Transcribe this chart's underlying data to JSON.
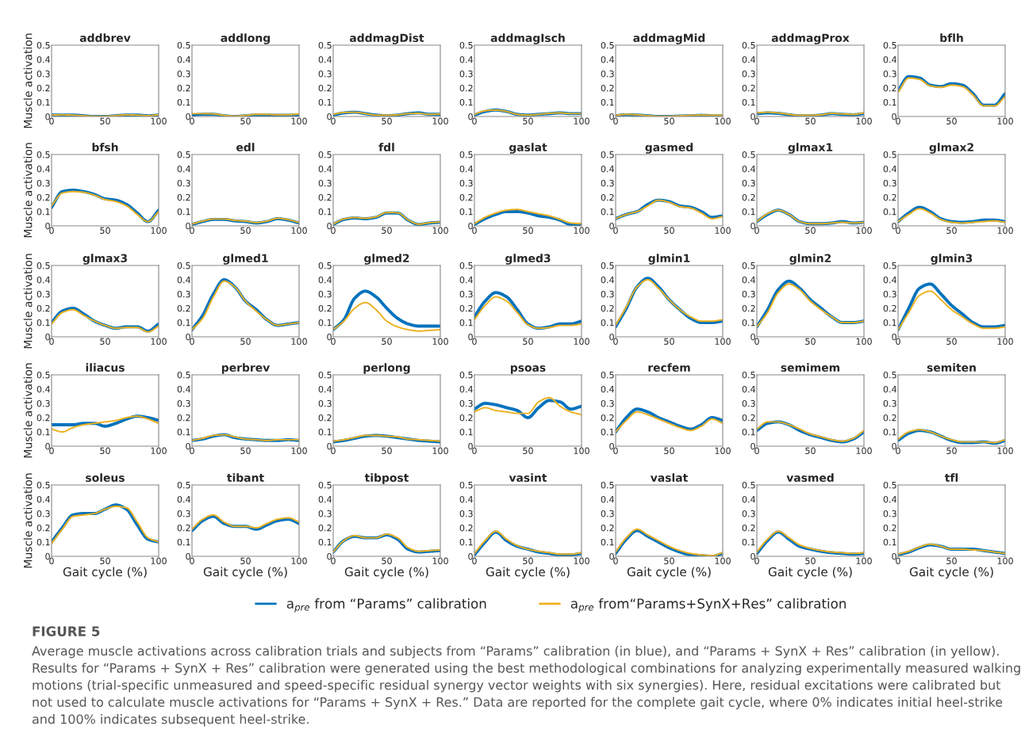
{
  "chart_data": [
    {
      "type": "line",
      "title": "addbrev",
      "ylabel": "Muscle activation",
      "x": [
        0,
        10,
        20,
        30,
        40,
        50,
        60,
        70,
        80,
        90,
        100
      ],
      "xlim": [
        0,
        100
      ],
      "xticks": [
        0,
        50,
        100
      ],
      "ylim": [
        0,
        0.5
      ],
      "yticks": [
        0,
        0.1,
        0.2,
        0.3,
        0.4,
        0.5
      ],
      "series": [
        {
          "color": "#0072bd",
          "values": [
            0.01,
            0.01,
            0.01,
            0.005,
            0,
            0,
            0.005,
            0.01,
            0.01,
            0.005,
            0.01
          ]
        },
        {
          "color": "#edb120",
          "values": [
            0.01,
            0.012,
            0.01,
            0.005,
            0.002,
            0.002,
            0.006,
            0.012,
            0.01,
            0.006,
            0.012
          ]
        }
      ]
    },
    {
      "type": "line",
      "title": "addlong",
      "x": [
        0,
        10,
        20,
        30,
        40,
        50,
        60,
        70,
        80,
        90,
        100
      ],
      "xlim": [
        0,
        100
      ],
      "xticks": [
        0,
        50,
        100
      ],
      "ylim": [
        0,
        0.5
      ],
      "yticks": [
        0,
        0.1,
        0.2,
        0.3,
        0.4,
        0.5
      ],
      "series": [
        {
          "color": "#0072bd",
          "values": [
            0.01,
            0.015,
            0.015,
            0.005,
            0,
            0.005,
            0.01,
            0.01,
            0.008,
            0.008,
            0.012
          ]
        },
        {
          "color": "#edb120",
          "values": [
            0.02,
            0.02,
            0.018,
            0.008,
            0.003,
            0.008,
            0.015,
            0.015,
            0.012,
            0.012,
            0.018
          ]
        }
      ]
    },
    {
      "type": "line",
      "title": "addmagDist",
      "x": [
        0,
        10,
        20,
        30,
        40,
        50,
        60,
        70,
        80,
        90,
        100
      ],
      "xlim": [
        0,
        100
      ],
      "xticks": [
        0,
        50,
        100
      ],
      "ylim": [
        0,
        0.5
      ],
      "yticks": [
        0,
        0.1,
        0.2,
        0.3,
        0.4,
        0.5
      ],
      "series": [
        {
          "color": "#0072bd",
          "values": [
            0.01,
            0.025,
            0.03,
            0.02,
            0.01,
            0.005,
            0.01,
            0.02,
            0.025,
            0.015,
            0.015
          ]
        },
        {
          "color": "#edb120",
          "values": [
            0.015,
            0.028,
            0.03,
            0.02,
            0.01,
            0.008,
            0.012,
            0.02,
            0.022,
            0.015,
            0.018
          ]
        }
      ]
    },
    {
      "type": "line",
      "title": "addmagIsch",
      "x": [
        0,
        10,
        20,
        30,
        40,
        50,
        60,
        70,
        80,
        90,
        100
      ],
      "xlim": [
        0,
        100
      ],
      "xticks": [
        0,
        50,
        100
      ],
      "ylim": [
        0,
        0.5
      ],
      "yticks": [
        0,
        0.1,
        0.2,
        0.3,
        0.4,
        0.5
      ],
      "series": [
        {
          "color": "#0072bd",
          "values": [
            0.01,
            0.035,
            0.045,
            0.035,
            0.015,
            0.01,
            0.015,
            0.02,
            0.025,
            0.02,
            0.02
          ]
        },
        {
          "color": "#edb120",
          "values": [
            0.015,
            0.04,
            0.045,
            0.035,
            0.015,
            0.01,
            0.015,
            0.022,
            0.025,
            0.02,
            0.02
          ]
        }
      ]
    },
    {
      "type": "line",
      "title": "addmagMid",
      "x": [
        0,
        10,
        20,
        30,
        40,
        50,
        60,
        70,
        80,
        90,
        100
      ],
      "xlim": [
        0,
        100
      ],
      "xticks": [
        0,
        50,
        100
      ],
      "ylim": [
        0,
        0.5
      ],
      "yticks": [
        0,
        0.1,
        0.2,
        0.3,
        0.4,
        0.5
      ],
      "series": [
        {
          "color": "#0072bd",
          "values": [
            0.005,
            0.012,
            0.01,
            0.005,
            0,
            0,
            0.003,
            0.005,
            0.008,
            0.005,
            0.005
          ]
        },
        {
          "color": "#edb120",
          "values": [
            0.008,
            0.015,
            0.012,
            0.006,
            0.002,
            0.002,
            0.005,
            0.008,
            0.01,
            0.008,
            0.008
          ]
        }
      ]
    },
    {
      "type": "line",
      "title": "addmagProx",
      "x": [
        0,
        10,
        20,
        30,
        40,
        50,
        60,
        70,
        80,
        90,
        100
      ],
      "xlim": [
        0,
        100
      ],
      "xticks": [
        0,
        50,
        100
      ],
      "ylim": [
        0,
        0.5
      ],
      "yticks": [
        0,
        0.1,
        0.2,
        0.3,
        0.4,
        0.5
      ],
      "series": [
        {
          "color": "#0072bd",
          "values": [
            0.02,
            0.025,
            0.022,
            0.012,
            0.005,
            0.005,
            0.01,
            0.02,
            0.015,
            0.012,
            0.02
          ]
        },
        {
          "color": "#edb120",
          "values": [
            0.025,
            0.03,
            0.025,
            0.015,
            0.008,
            0.008,
            0.012,
            0.022,
            0.018,
            0.015,
            0.025
          ]
        }
      ]
    },
    {
      "type": "line",
      "title": "bflh",
      "x": [
        0,
        10,
        20,
        30,
        40,
        50,
        60,
        70,
        80,
        90,
        100
      ],
      "xlim": [
        0,
        100
      ],
      "xticks": [
        0,
        50,
        100
      ],
      "ylim": [
        0,
        0.5
      ],
      "yticks": [
        0,
        0.1,
        0.2,
        0.3,
        0.4,
        0.5
      ],
      "series": [
        {
          "color": "#0072bd",
          "values": [
            0.18,
            0.28,
            0.27,
            0.22,
            0.21,
            0.23,
            0.22,
            0.16,
            0.08,
            0.08,
            0.16
          ]
        },
        {
          "color": "#edb120",
          "values": [
            0.17,
            0.27,
            0.26,
            0.215,
            0.205,
            0.22,
            0.21,
            0.15,
            0.075,
            0.075,
            0.14
          ]
        }
      ]
    },
    {
      "type": "line",
      "title": "bfsh",
      "ylabel": "Muscle activation",
      "x": [
        0,
        10,
        20,
        30,
        40,
        50,
        60,
        70,
        80,
        90,
        100
      ],
      "xlim": [
        0,
        100
      ],
      "xticks": [
        0,
        50,
        100
      ],
      "ylim": [
        0,
        0.5
      ],
      "yticks": [
        0,
        0.1,
        0.2,
        0.3,
        0.4,
        0.5
      ],
      "series": [
        {
          "color": "#0072bd",
          "values": [
            0.13,
            0.24,
            0.25,
            0.24,
            0.22,
            0.19,
            0.18,
            0.15,
            0.09,
            0.03,
            0.11
          ]
        },
        {
          "color": "#edb120",
          "values": [
            0.14,
            0.23,
            0.24,
            0.235,
            0.215,
            0.185,
            0.17,
            0.14,
            0.08,
            0.03,
            0.1
          ]
        }
      ]
    },
    {
      "type": "line",
      "title": "edl",
      "x": [
        0,
        10,
        20,
        30,
        40,
        50,
        60,
        70,
        80,
        90,
        100
      ],
      "xlim": [
        0,
        100
      ],
      "xticks": [
        0,
        50,
        100
      ],
      "ylim": [
        0,
        0.5
      ],
      "yticks": [
        0,
        0.1,
        0.2,
        0.3,
        0.4,
        0.5
      ],
      "series": [
        {
          "color": "#0072bd",
          "values": [
            0.01,
            0.03,
            0.045,
            0.045,
            0.035,
            0.03,
            0.02,
            0.03,
            0.05,
            0.04,
            0.02
          ]
        },
        {
          "color": "#edb120",
          "values": [
            0.013,
            0.033,
            0.048,
            0.048,
            0.038,
            0.033,
            0.023,
            0.033,
            0.053,
            0.043,
            0.023
          ]
        }
      ]
    },
    {
      "type": "line",
      "title": "fdl",
      "x": [
        0,
        10,
        20,
        30,
        40,
        50,
        60,
        70,
        80,
        90,
        100
      ],
      "xlim": [
        0,
        100
      ],
      "xticks": [
        0,
        50,
        100
      ],
      "ylim": [
        0,
        0.5
      ],
      "yticks": [
        0,
        0.1,
        0.2,
        0.3,
        0.4,
        0.5
      ],
      "series": [
        {
          "color": "#0072bd",
          "values": [
            0.01,
            0.045,
            0.055,
            0.05,
            0.06,
            0.09,
            0.09,
            0.04,
            0.01,
            0.02,
            0.025
          ]
        },
        {
          "color": "#edb120",
          "values": [
            0.012,
            0.048,
            0.058,
            0.053,
            0.063,
            0.093,
            0.092,
            0.042,
            0.012,
            0.022,
            0.027
          ]
        }
      ]
    },
    {
      "type": "line",
      "title": "gaslat",
      "x": [
        0,
        10,
        20,
        30,
        40,
        50,
        60,
        70,
        80,
        90,
        100
      ],
      "xlim": [
        0,
        100
      ],
      "xticks": [
        0,
        50,
        100
      ],
      "ylim": [
        0,
        0.5
      ],
      "yticks": [
        0,
        0.1,
        0.2,
        0.3,
        0.4,
        0.5
      ],
      "series": [
        {
          "color": "#0072bd",
          "values": [
            0.01,
            0.05,
            0.08,
            0.1,
            0.1,
            0.09,
            0.07,
            0.06,
            0.04,
            0.01,
            0.01
          ]
        },
        {
          "color": "#edb120",
          "values": [
            0.015,
            0.06,
            0.09,
            0.11,
            0.115,
            0.1,
            0.085,
            0.07,
            0.045,
            0.02,
            0.015
          ]
        }
      ]
    },
    {
      "type": "line",
      "title": "gasmed",
      "x": [
        0,
        10,
        20,
        30,
        40,
        50,
        60,
        70,
        80,
        90,
        100
      ],
      "xlim": [
        0,
        100
      ],
      "xticks": [
        0,
        50,
        100
      ],
      "ylim": [
        0,
        0.5
      ],
      "yticks": [
        0,
        0.1,
        0.2,
        0.3,
        0.4,
        0.5
      ],
      "series": [
        {
          "color": "#0072bd",
          "values": [
            0.05,
            0.08,
            0.1,
            0.15,
            0.18,
            0.17,
            0.14,
            0.13,
            0.1,
            0.06,
            0.07
          ]
        },
        {
          "color": "#edb120",
          "values": [
            0.05,
            0.08,
            0.1,
            0.14,
            0.18,
            0.165,
            0.135,
            0.125,
            0.09,
            0.05,
            0.065
          ]
        }
      ]
    },
    {
      "type": "line",
      "title": "glmax1",
      "x": [
        0,
        10,
        20,
        30,
        40,
        50,
        60,
        70,
        80,
        90,
        100
      ],
      "xlim": [
        0,
        100
      ],
      "xticks": [
        0,
        50,
        100
      ],
      "ylim": [
        0,
        0.5
      ],
      "yticks": [
        0,
        0.1,
        0.2,
        0.3,
        0.4,
        0.5
      ],
      "series": [
        {
          "color": "#0072bd",
          "values": [
            0.03,
            0.08,
            0.11,
            0.08,
            0.03,
            0.015,
            0.015,
            0.02,
            0.03,
            0.02,
            0.025
          ]
        },
        {
          "color": "#edb120",
          "values": [
            0.03,
            0.085,
            0.11,
            0.08,
            0.03,
            0.015,
            0.015,
            0.02,
            0.025,
            0.02,
            0.025
          ]
        }
      ]
    },
    {
      "type": "line",
      "title": "glmax2",
      "x": [
        0,
        10,
        20,
        30,
        40,
        50,
        60,
        70,
        80,
        90,
        100
      ],
      "xlim": [
        0,
        100
      ],
      "xticks": [
        0,
        50,
        100
      ],
      "ylim": [
        0,
        0.5
      ],
      "yticks": [
        0,
        0.1,
        0.2,
        0.3,
        0.4,
        0.5
      ],
      "series": [
        {
          "color": "#0072bd",
          "values": [
            0.03,
            0.09,
            0.13,
            0.1,
            0.05,
            0.03,
            0.025,
            0.03,
            0.04,
            0.04,
            0.03
          ]
        },
        {
          "color": "#edb120",
          "values": [
            0.03,
            0.08,
            0.12,
            0.09,
            0.045,
            0.025,
            0.02,
            0.025,
            0.03,
            0.035,
            0.025
          ]
        }
      ]
    },
    {
      "type": "line",
      "title": "glmax3",
      "ylabel": "Muscle activation",
      "x": [
        0,
        10,
        20,
        30,
        40,
        50,
        60,
        70,
        80,
        90,
        100
      ],
      "xlim": [
        0,
        100
      ],
      "xticks": [
        0,
        50,
        100
      ],
      "ylim": [
        0,
        0.5
      ],
      "yticks": [
        0,
        0.1,
        0.2,
        0.3,
        0.4,
        0.5
      ],
      "series": [
        {
          "color": "#0072bd",
          "values": [
            0.1,
            0.18,
            0.2,
            0.16,
            0.11,
            0.08,
            0.06,
            0.07,
            0.07,
            0.04,
            0.09
          ]
        },
        {
          "color": "#edb120",
          "values": [
            0.09,
            0.17,
            0.19,
            0.15,
            0.11,
            0.08,
            0.06,
            0.065,
            0.065,
            0.035,
            0.075
          ]
        }
      ]
    },
    {
      "type": "line",
      "title": "glmed1",
      "x": [
        0,
        10,
        20,
        30,
        40,
        50,
        60,
        70,
        80,
        90,
        100
      ],
      "xlim": [
        0,
        100
      ],
      "xticks": [
        0,
        50,
        100
      ],
      "ylim": [
        0,
        0.5
      ],
      "yticks": [
        0,
        0.1,
        0.2,
        0.3,
        0.4,
        0.5
      ],
      "series": [
        {
          "color": "#0072bd",
          "values": [
            0.05,
            0.15,
            0.3,
            0.4,
            0.35,
            0.25,
            0.19,
            0.12,
            0.08,
            0.09,
            0.1
          ]
        },
        {
          "color": "#edb120",
          "values": [
            0.05,
            0.13,
            0.28,
            0.39,
            0.35,
            0.25,
            0.18,
            0.12,
            0.08,
            0.09,
            0.1
          ]
        }
      ]
    },
    {
      "type": "line",
      "title": "glmed2",
      "x": [
        0,
        10,
        20,
        30,
        40,
        50,
        60,
        70,
        80,
        90,
        100
      ],
      "xlim": [
        0,
        100
      ],
      "xticks": [
        0,
        50,
        100
      ],
      "ylim": [
        0,
        0.5
      ],
      "yticks": [
        0,
        0.1,
        0.2,
        0.3,
        0.4,
        0.5
      ],
      "series": [
        {
          "color": "#0072bd",
          "values": [
            0.05,
            0.12,
            0.27,
            0.32,
            0.28,
            0.2,
            0.13,
            0.09,
            0.075,
            0.075,
            0.075
          ]
        },
        {
          "color": "#edb120",
          "values": [
            0.05,
            0.11,
            0.2,
            0.24,
            0.19,
            0.11,
            0.07,
            0.05,
            0.04,
            0.045,
            0.05
          ]
        }
      ]
    },
    {
      "type": "line",
      "title": "glmed3",
      "x": [
        0,
        10,
        20,
        30,
        40,
        50,
        60,
        70,
        80,
        90,
        100
      ],
      "xlim": [
        0,
        100
      ],
      "xticks": [
        0,
        50,
        100
      ],
      "ylim": [
        0,
        0.5
      ],
      "yticks": [
        0,
        0.1,
        0.2,
        0.3,
        0.4,
        0.5
      ],
      "series": [
        {
          "color": "#0072bd",
          "values": [
            0.14,
            0.25,
            0.31,
            0.28,
            0.19,
            0.09,
            0.06,
            0.07,
            0.09,
            0.09,
            0.11
          ]
        },
        {
          "color": "#edb120",
          "values": [
            0.12,
            0.22,
            0.28,
            0.25,
            0.17,
            0.085,
            0.06,
            0.065,
            0.08,
            0.08,
            0.09
          ]
        }
      ]
    },
    {
      "type": "line",
      "title": "glmin1",
      "x": [
        0,
        10,
        20,
        30,
        40,
        50,
        60,
        70,
        80,
        90,
        100
      ],
      "xlim": [
        0,
        100
      ],
      "xticks": [
        0,
        50,
        100
      ],
      "ylim": [
        0,
        0.5
      ],
      "yticks": [
        0,
        0.1,
        0.2,
        0.3,
        0.4,
        0.5
      ],
      "series": [
        {
          "color": "#0072bd",
          "values": [
            0.07,
            0.2,
            0.35,
            0.41,
            0.35,
            0.26,
            0.19,
            0.13,
            0.1,
            0.1,
            0.11
          ]
        },
        {
          "color": "#edb120",
          "values": [
            0.08,
            0.21,
            0.35,
            0.4,
            0.34,
            0.26,
            0.19,
            0.14,
            0.11,
            0.11,
            0.12
          ]
        }
      ]
    },
    {
      "type": "line",
      "title": "glmin2",
      "x": [
        0,
        10,
        20,
        30,
        40,
        50,
        60,
        70,
        80,
        90,
        100
      ],
      "xlim": [
        0,
        100
      ],
      "xticks": [
        0,
        50,
        100
      ],
      "ylim": [
        0,
        0.5
      ],
      "yticks": [
        0,
        0.1,
        0.2,
        0.3,
        0.4,
        0.5
      ],
      "series": [
        {
          "color": "#0072bd",
          "values": [
            0.07,
            0.19,
            0.33,
            0.39,
            0.34,
            0.26,
            0.2,
            0.14,
            0.1,
            0.1,
            0.11
          ]
        },
        {
          "color": "#edb120",
          "values": [
            0.07,
            0.17,
            0.31,
            0.37,
            0.33,
            0.25,
            0.19,
            0.14,
            0.1,
            0.1,
            0.11
          ]
        }
      ]
    },
    {
      "type": "line",
      "title": "glmin3",
      "x": [
        0,
        10,
        20,
        30,
        40,
        50,
        60,
        70,
        80,
        90,
        100
      ],
      "xlim": [
        0,
        100
      ],
      "xticks": [
        0,
        50,
        100
      ],
      "ylim": [
        0,
        0.5
      ],
      "yticks": [
        0,
        0.1,
        0.2,
        0.3,
        0.4,
        0.5
      ],
      "series": [
        {
          "color": "#0072bd",
          "values": [
            0.05,
            0.2,
            0.34,
            0.37,
            0.3,
            0.22,
            0.16,
            0.1,
            0.07,
            0.07,
            0.08
          ]
        },
        {
          "color": "#edb120",
          "values": [
            0.05,
            0.17,
            0.29,
            0.32,
            0.26,
            0.19,
            0.14,
            0.09,
            0.06,
            0.06,
            0.07
          ]
        }
      ]
    },
    {
      "type": "line",
      "title": "iliacus",
      "ylabel": "Muscle activation",
      "x": [
        0,
        10,
        20,
        30,
        40,
        50,
        60,
        70,
        80,
        90,
        100
      ],
      "xlim": [
        0,
        100
      ],
      "xticks": [
        0,
        50,
        100
      ],
      "ylim": [
        0,
        0.5
      ],
      "yticks": [
        0,
        0.1,
        0.2,
        0.3,
        0.4,
        0.5
      ],
      "series": [
        {
          "color": "#0072bd",
          "values": [
            0.15,
            0.15,
            0.15,
            0.16,
            0.16,
            0.14,
            0.16,
            0.19,
            0.21,
            0.2,
            0.18
          ]
        },
        {
          "color": "#edb120",
          "values": [
            0.12,
            0.1,
            0.13,
            0.15,
            0.16,
            0.17,
            0.18,
            0.2,
            0.21,
            0.19,
            0.16
          ]
        }
      ]
    },
    {
      "type": "line",
      "title": "perbrev",
      "x": [
        0,
        10,
        20,
        30,
        40,
        50,
        60,
        70,
        80,
        90,
        100
      ],
      "xlim": [
        0,
        100
      ],
      "xticks": [
        0,
        50,
        100
      ],
      "ylim": [
        0,
        0.5
      ],
      "yticks": [
        0,
        0.1,
        0.2,
        0.3,
        0.4,
        0.5
      ],
      "series": [
        {
          "color": "#0072bd",
          "values": [
            0.04,
            0.05,
            0.07,
            0.08,
            0.06,
            0.05,
            0.045,
            0.04,
            0.04,
            0.045,
            0.04
          ]
        },
        {
          "color": "#edb120",
          "values": [
            0.04,
            0.055,
            0.075,
            0.08,
            0.065,
            0.05,
            0.045,
            0.04,
            0.045,
            0.045,
            0.045
          ]
        }
      ]
    },
    {
      "type": "line",
      "title": "perlong",
      "x": [
        0,
        10,
        20,
        30,
        40,
        50,
        60,
        70,
        80,
        90,
        100
      ],
      "xlim": [
        0,
        100
      ],
      "xticks": [
        0,
        50,
        100
      ],
      "ylim": [
        0,
        0.5
      ],
      "yticks": [
        0,
        0.1,
        0.2,
        0.3,
        0.4,
        0.5
      ],
      "series": [
        {
          "color": "#0072bd",
          "values": [
            0.03,
            0.04,
            0.055,
            0.07,
            0.075,
            0.07,
            0.06,
            0.05,
            0.04,
            0.035,
            0.03
          ]
        },
        {
          "color": "#edb120",
          "values": [
            0.035,
            0.045,
            0.06,
            0.075,
            0.075,
            0.07,
            0.065,
            0.05,
            0.045,
            0.04,
            0.035
          ]
        }
      ]
    },
    {
      "type": "line",
      "title": "psoas",
      "x": [
        0,
        10,
        20,
        30,
        40,
        50,
        60,
        70,
        80,
        90,
        100
      ],
      "xlim": [
        0,
        100
      ],
      "xticks": [
        0,
        50,
        100
      ],
      "ylim": [
        0,
        0.5
      ],
      "yticks": [
        0,
        0.1,
        0.2,
        0.3,
        0.4,
        0.5
      ],
      "series": [
        {
          "color": "#0072bd",
          "values": [
            0.26,
            0.3,
            0.29,
            0.27,
            0.25,
            0.2,
            0.27,
            0.32,
            0.31,
            0.26,
            0.28
          ]
        },
        {
          "color": "#edb120",
          "values": [
            0.24,
            0.27,
            0.25,
            0.24,
            0.23,
            0.23,
            0.31,
            0.34,
            0.28,
            0.24,
            0.22
          ]
        }
      ]
    },
    {
      "type": "line",
      "title": "recfem",
      "x": [
        0,
        10,
        20,
        30,
        40,
        50,
        60,
        70,
        80,
        90,
        100
      ],
      "xlim": [
        0,
        100
      ],
      "xticks": [
        0,
        50,
        100
      ],
      "ylim": [
        0,
        0.5
      ],
      "yticks": [
        0,
        0.1,
        0.2,
        0.3,
        0.4,
        0.5
      ],
      "series": [
        {
          "color": "#0072bd",
          "values": [
            0.1,
            0.2,
            0.26,
            0.24,
            0.2,
            0.17,
            0.14,
            0.12,
            0.15,
            0.2,
            0.18
          ]
        },
        {
          "color": "#edb120",
          "values": [
            0.1,
            0.18,
            0.24,
            0.22,
            0.19,
            0.16,
            0.13,
            0.11,
            0.14,
            0.19,
            0.16
          ]
        }
      ]
    },
    {
      "type": "line",
      "title": "semimem",
      "x": [
        0,
        10,
        20,
        30,
        40,
        50,
        60,
        70,
        80,
        90,
        100
      ],
      "xlim": [
        0,
        100
      ],
      "xticks": [
        0,
        50,
        100
      ],
      "ylim": [
        0,
        0.5
      ],
      "yticks": [
        0,
        0.1,
        0.2,
        0.3,
        0.4,
        0.5
      ],
      "series": [
        {
          "color": "#0072bd",
          "values": [
            0.11,
            0.16,
            0.17,
            0.15,
            0.11,
            0.08,
            0.06,
            0.04,
            0.03,
            0.05,
            0.1
          ]
        },
        {
          "color": "#edb120",
          "values": [
            0.12,
            0.17,
            0.17,
            0.15,
            0.12,
            0.085,
            0.065,
            0.045,
            0.035,
            0.055,
            0.11
          ]
        }
      ]
    },
    {
      "type": "line",
      "title": "semiten",
      "x": [
        0,
        10,
        20,
        30,
        40,
        50,
        60,
        70,
        80,
        90,
        100
      ],
      "xlim": [
        0,
        100
      ],
      "xticks": [
        0,
        50,
        100
      ],
      "ylim": [
        0,
        0.5
      ],
      "yticks": [
        0,
        0.1,
        0.2,
        0.3,
        0.4,
        0.5
      ],
      "series": [
        {
          "color": "#0072bd",
          "values": [
            0.04,
            0.09,
            0.11,
            0.1,
            0.07,
            0.04,
            0.025,
            0.025,
            0.03,
            0.02,
            0.04
          ]
        },
        {
          "color": "#edb120",
          "values": [
            0.05,
            0.1,
            0.115,
            0.1,
            0.07,
            0.045,
            0.03,
            0.03,
            0.03,
            0.025,
            0.045
          ]
        }
      ]
    },
    {
      "type": "line",
      "title": "soleus",
      "ylabel": "Muscle activation",
      "xlabel": "Gait cycle (%)",
      "x": [
        0,
        10,
        20,
        30,
        40,
        50,
        60,
        70,
        80,
        90,
        100
      ],
      "xlim": [
        0,
        100
      ],
      "xticks": [
        0,
        50,
        100
      ],
      "ylim": [
        0,
        0.5
      ],
      "yticks": [
        0,
        0.1,
        0.2,
        0.3,
        0.4,
        0.5
      ],
      "series": [
        {
          "color": "#0072bd",
          "values": [
            0.1,
            0.2,
            0.29,
            0.3,
            0.3,
            0.33,
            0.36,
            0.33,
            0.22,
            0.12,
            0.1
          ]
        },
        {
          "color": "#edb120",
          "values": [
            0.09,
            0.19,
            0.28,
            0.29,
            0.3,
            0.33,
            0.35,
            0.34,
            0.24,
            0.13,
            0.1
          ]
        }
      ]
    },
    {
      "type": "line",
      "title": "tibant",
      "xlabel": "Gait cycle (%)",
      "x": [
        0,
        10,
        20,
        30,
        40,
        50,
        60,
        70,
        80,
        90,
        100
      ],
      "xlim": [
        0,
        100
      ],
      "xticks": [
        0,
        50,
        100
      ],
      "ylim": [
        0,
        0.5
      ],
      "yticks": [
        0,
        0.1,
        0.2,
        0.3,
        0.4,
        0.5
      ],
      "series": [
        {
          "color": "#0072bd",
          "values": [
            0.18,
            0.25,
            0.28,
            0.23,
            0.21,
            0.21,
            0.19,
            0.22,
            0.25,
            0.26,
            0.23
          ]
        },
        {
          "color": "#edb120",
          "values": [
            0.19,
            0.26,
            0.29,
            0.24,
            0.21,
            0.21,
            0.2,
            0.23,
            0.26,
            0.27,
            0.24
          ]
        }
      ]
    },
    {
      "type": "line",
      "title": "tibpost",
      "xlabel": "Gait cycle (%)",
      "x": [
        0,
        10,
        20,
        30,
        40,
        50,
        60,
        70,
        80,
        90,
        100
      ],
      "xlim": [
        0,
        100
      ],
      "xticks": [
        0,
        50,
        100
      ],
      "ylim": [
        0,
        0.5
      ],
      "yticks": [
        0,
        0.1,
        0.2,
        0.3,
        0.4,
        0.5
      ],
      "series": [
        {
          "color": "#0072bd",
          "values": [
            0.03,
            0.11,
            0.14,
            0.13,
            0.13,
            0.15,
            0.12,
            0.05,
            0.03,
            0.035,
            0.04
          ]
        },
        {
          "color": "#edb120",
          "values": [
            0.03,
            0.11,
            0.145,
            0.13,
            0.13,
            0.155,
            0.13,
            0.06,
            0.035,
            0.04,
            0.045
          ]
        }
      ]
    },
    {
      "type": "line",
      "title": "vasint",
      "xlabel": "Gait cycle (%)",
      "legend": "bottom",
      "annotations": [
        "FIGURE 5",
        "Average muscle activations across calibration trials and subjects from “Params” calibration (in blue), and “Params + SynX + Res” calibration (in yellow). Results for “Params + SynX + Res” calibration were generated using the best methodological combinations for analyzing experimentally measured walking motions (trial-specific unmeasured and speed-specific residual synergy vector weights with six synergies). Here, residual excitations were calibrated but not used to calculate muscle activations for “Params + SynX + Res.” Data are reported for the complete gait cycle, where 0% indicates initial heel-strike and 100% indicates subsequent heel-strike."
      ],
      "x": [
        0,
        10,
        20,
        30,
        40,
        50,
        60,
        70,
        80,
        90,
        100
      ],
      "xlim": [
        0,
        100
      ],
      "xticks": [
        0,
        50,
        100
      ],
      "ylim": [
        0,
        0.5
      ],
      "yticks": [
        0,
        0.1,
        0.2,
        0.3,
        0.4,
        0.5
      ],
      "series": [
        {
          "name": "a$_{pre}$ from “Params” calibration",
          "color": "#0072bd",
          "values": [
            0.01,
            0.1,
            0.17,
            0.11,
            0.07,
            0.05,
            0.03,
            0.02,
            0.01,
            0.01,
            0.02
          ]
        },
        {
          "name": "a$_{pre}$ from“Params+SynX+Res” calibration",
          "color": "#edb120",
          "values": [
            0.02,
            0.11,
            0.175,
            0.12,
            0.075,
            0.05,
            0.035,
            0.025,
            0.015,
            0.015,
            0.025
          ]
        }
      ]
    },
    {
      "type": "line",
      "title": "vaslat",
      "xlabel": "Gait cycle (%)",
      "x": [
        0,
        10,
        20,
        30,
        40,
        50,
        60,
        70,
        80,
        90,
        100
      ],
      "xlim": [
        0,
        100
      ],
      "xticks": [
        0,
        50,
        100
      ],
      "ylim": [
        0,
        0.5
      ],
      "yticks": [
        0,
        0.1,
        0.2,
        0.3,
        0.4,
        0.5
      ],
      "series": [
        {
          "color": "#0072bd",
          "values": [
            0.02,
            0.12,
            0.18,
            0.14,
            0.1,
            0.06,
            0.03,
            0.01,
            0.005,
            0,
            0.02
          ]
        },
        {
          "color": "#edb120",
          "values": [
            0.03,
            0.13,
            0.19,
            0.15,
            0.11,
            0.07,
            0.04,
            0.02,
            0.01,
            0.005,
            0.025
          ]
        }
      ]
    },
    {
      "type": "line",
      "title": "vasmed",
      "xlabel": "Gait cycle (%)",
      "x": [
        0,
        10,
        20,
        30,
        40,
        50,
        60,
        70,
        80,
        90,
        100
      ],
      "xlim": [
        0,
        100
      ],
      "xticks": [
        0,
        50,
        100
      ],
      "ylim": [
        0,
        0.5
      ],
      "yticks": [
        0,
        0.1,
        0.2,
        0.3,
        0.4,
        0.5
      ],
      "series": [
        {
          "color": "#0072bd",
          "values": [
            0.02,
            0.11,
            0.17,
            0.12,
            0.07,
            0.05,
            0.035,
            0.025,
            0.02,
            0.015,
            0.02
          ]
        },
        {
          "color": "#edb120",
          "values": [
            0.03,
            0.12,
            0.175,
            0.13,
            0.08,
            0.055,
            0.04,
            0.03,
            0.025,
            0.02,
            0.025
          ]
        }
      ]
    },
    {
      "type": "line",
      "title": "tfl",
      "xlabel": "Gait cycle (%)",
      "x": [
        0,
        10,
        20,
        30,
        40,
        50,
        60,
        70,
        80,
        90,
        100
      ],
      "xlim": [
        0,
        100
      ],
      "xticks": [
        0,
        50,
        100
      ],
      "ylim": [
        0,
        0.5
      ],
      "yticks": [
        0,
        0.1,
        0.2,
        0.3,
        0.4,
        0.5
      ],
      "series": [
        {
          "color": "#0072bd",
          "values": [
            0.01,
            0.03,
            0.06,
            0.08,
            0.07,
            0.05,
            0.05,
            0.05,
            0.04,
            0.03,
            0.02
          ]
        },
        {
          "color": "#edb120",
          "values": [
            0.015,
            0.035,
            0.065,
            0.085,
            0.07,
            0.05,
            0.05,
            0.045,
            0.04,
            0.03,
            0.02
          ]
        }
      ]
    }
  ]
}
